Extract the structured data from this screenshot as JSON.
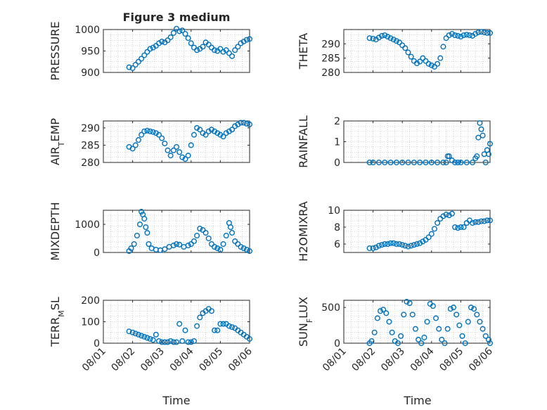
{
  "figure": {
    "title": "Figure 3 medium",
    "xlabel": "Time"
  },
  "colors": {
    "marker": "#0072bd",
    "axes": "#262626",
    "grid": "#b0b0b0",
    "background": "#ffffff"
  },
  "chart_data": [
    {
      "type": "scatter",
      "ylabel": "PRESSURE",
      "ylabel_parts": [
        "PRESSURE"
      ],
      "ylim": [
        900,
        1000
      ],
      "yticks": [
        900,
        950,
        1000
      ],
      "xlim": [
        0,
        5
      ],
      "xticklabels": [],
      "x": [
        0.88,
        1.0,
        1.1,
        1.2,
        1.3,
        1.4,
        1.5,
        1.6,
        1.7,
        1.8,
        1.9,
        2.0,
        2.1,
        2.2,
        2.3,
        2.4,
        2.5,
        2.6,
        2.7,
        2.8,
        2.9,
        3.0,
        3.1,
        3.2,
        3.3,
        3.4,
        3.5,
        3.6,
        3.7,
        3.8,
        3.9,
        4.0,
        4.1,
        4.2,
        4.3,
        4.4,
        4.5,
        4.6,
        4.7,
        4.8,
        4.9,
        5.0
      ],
      "y": [
        912,
        910,
        918,
        925,
        932,
        940,
        948,
        955,
        958,
        962,
        968,
        972,
        970,
        975,
        982,
        992,
        1002,
        996,
        998,
        990,
        980,
        968,
        958,
        952,
        955,
        960,
        970,
        965,
        958,
        952,
        950,
        955,
        948,
        952,
        945,
        938,
        952,
        960,
        968,
        972,
        976,
        978
      ]
    },
    {
      "type": "scatter",
      "ylabel": "THETA",
      "ylabel_parts": [
        "THETA"
      ],
      "ylim": [
        280,
        295
      ],
      "yticks": [
        280,
        285,
        290
      ],
      "xlim": [
        0,
        5
      ],
      "xticklabels": [],
      "x": [
        0.88,
        1.0,
        1.1,
        1.2,
        1.3,
        1.4,
        1.5,
        1.6,
        1.7,
        1.8,
        1.9,
        2.0,
        2.1,
        2.2,
        2.3,
        2.4,
        2.5,
        2.6,
        2.7,
        2.8,
        2.9,
        3.0,
        3.1,
        3.2,
        3.3,
        3.4,
        3.5,
        3.6,
        3.7,
        3.8,
        3.9,
        4.0,
        4.1,
        4.2,
        4.3,
        4.4,
        4.5,
        4.6,
        4.7,
        4.8,
        4.9,
        5.0
      ],
      "y": [
        292,
        291.8,
        291.5,
        292.2,
        292.8,
        293.0,
        292.5,
        292.0,
        291.5,
        291.0,
        290.5,
        289.5,
        288.5,
        287.0,
        285.5,
        284.0,
        283.2,
        283.8,
        285.0,
        284.0,
        283.0,
        282.5,
        282.0,
        283.0,
        285.0,
        289.0,
        292.0,
        293.0,
        293.5,
        293.0,
        292.8,
        292.5,
        293.0,
        293.2,
        293.0,
        292.8,
        293.5,
        294.0,
        294.2,
        294.0,
        293.8,
        293.8
      ]
    },
    {
      "type": "scatter",
      "ylabel": "AIR_TEMP",
      "ylabel_parts": [
        "AIR",
        "T",
        "EMP"
      ],
      "ylim": [
        280,
        292
      ],
      "yticks": [
        280,
        285,
        290
      ],
      "xlim": [
        0,
        5
      ],
      "xticklabels": [],
      "x": [
        0.88,
        1.0,
        1.1,
        1.2,
        1.3,
        1.4,
        1.5,
        1.6,
        1.7,
        1.8,
        1.9,
        2.0,
        2.1,
        2.2,
        2.3,
        2.4,
        2.5,
        2.6,
        2.7,
        2.8,
        2.9,
        3.0,
        3.1,
        3.2,
        3.3,
        3.4,
        3.5,
        3.6,
        3.7,
        3.8,
        3.9,
        4.0,
        4.1,
        4.2,
        4.3,
        4.4,
        4.5,
        4.6,
        4.7,
        4.8,
        4.9,
        5.0
      ],
      "y": [
        284.5,
        284.0,
        285.0,
        286.5,
        288.0,
        289.0,
        289.2,
        289.0,
        288.8,
        288.5,
        288.0,
        287.0,
        285.5,
        283.5,
        282.0,
        283.5,
        284.5,
        283.0,
        281.5,
        281.0,
        282.0,
        285.0,
        288.0,
        290.0,
        289.5,
        288.5,
        288.0,
        289.0,
        289.5,
        289.0,
        288.5,
        288.0,
        287.5,
        288.5,
        289.0,
        289.5,
        290.5,
        291.0,
        291.5,
        291.5,
        291.2,
        291.0
      ]
    },
    {
      "type": "scatter",
      "ylabel": "RAINFALL",
      "ylabel_parts": [
        "RAINFALL"
      ],
      "ylim": [
        0,
        2
      ],
      "yticks": [
        0,
        1,
        2
      ],
      "xlim": [
        0,
        5
      ],
      "xticklabels": [],
      "x": [
        0.88,
        1.0,
        1.2,
        1.4,
        1.6,
        1.8,
        2.0,
        2.2,
        2.4,
        2.6,
        2.8,
        3.0,
        3.2,
        3.4,
        3.5,
        3.55,
        3.6,
        3.7,
        3.8,
        3.9,
        4.0,
        4.2,
        4.4,
        4.5,
        4.55,
        4.6,
        4.65,
        4.7,
        4.75,
        4.8,
        4.85,
        4.9,
        4.95,
        5.0
      ],
      "y": [
        0,
        0,
        0,
        0,
        0,
        0,
        0,
        0,
        0,
        0,
        0,
        0,
        0,
        0,
        0,
        0.3,
        0.3,
        0.1,
        0,
        0,
        0,
        0,
        0,
        0.2,
        0.3,
        1.2,
        1.9,
        1.6,
        1.3,
        0.4,
        0.0,
        0.6,
        0.4,
        0.9
      ]
    },
    {
      "type": "scatter",
      "ylabel": "MIXDEPTH",
      "ylabel_parts": [
        "MIXDEPTH"
      ],
      "ylim": [
        0,
        1500
      ],
      "yticks": [
        0,
        1000
      ],
      "xlim": [
        0,
        5
      ],
      "xticklabels": [],
      "x": [
        0.88,
        0.95,
        1.05,
        1.15,
        1.25,
        1.3,
        1.35,
        1.4,
        1.45,
        1.5,
        1.55,
        1.65,
        1.8,
        1.95,
        2.1,
        2.25,
        2.4,
        2.5,
        2.6,
        2.75,
        2.9,
        3.0,
        3.1,
        3.2,
        3.3,
        3.4,
        3.5,
        3.6,
        3.7,
        3.8,
        3.9,
        4.0,
        4.1,
        4.2,
        4.3,
        4.35,
        4.4,
        4.5,
        4.6,
        4.7,
        4.8,
        4.9,
        5.0
      ],
      "y": [
        50,
        150,
        300,
        600,
        1000,
        1450,
        1350,
        1200,
        900,
        700,
        300,
        150,
        100,
        80,
        120,
        200,
        250,
        300,
        280,
        200,
        250,
        300,
        400,
        600,
        850,
        800,
        700,
        500,
        300,
        200,
        150,
        100,
        300,
        600,
        1050,
        900,
        700,
        400,
        300,
        200,
        150,
        100,
        50
      ]
    },
    {
      "type": "scatter",
      "ylabel": "H2OMIXRA",
      "ylabel_parts": [
        "H2OMIXRA"
      ],
      "ylim": [
        5,
        10
      ],
      "yticks": [
        6,
        8,
        10
      ],
      "xlim": [
        0,
        5
      ],
      "xticklabels": [],
      "x": [
        0.88,
        1.0,
        1.1,
        1.2,
        1.3,
        1.4,
        1.5,
        1.6,
        1.7,
        1.8,
        1.9,
        2.0,
        2.1,
        2.2,
        2.3,
        2.4,
        2.5,
        2.6,
        2.7,
        2.8,
        2.9,
        3.0,
        3.1,
        3.2,
        3.3,
        3.4,
        3.5,
        3.6,
        3.7,
        3.8,
        3.9,
        4.0,
        4.1,
        4.2,
        4.3,
        4.4,
        4.5,
        4.6,
        4.7,
        4.8,
        4.9,
        5.0
      ],
      "y": [
        5.5,
        5.5,
        5.6,
        5.8,
        5.9,
        6.0,
        6.0,
        6.1,
        6.1,
        6.0,
        6.0,
        5.9,
        5.8,
        5.7,
        5.8,
        5.9,
        6.0,
        6.1,
        6.3,
        6.5,
        6.8,
        7.2,
        7.8,
        8.5,
        9.0,
        9.3,
        9.5,
        9.4,
        9.6,
        8.0,
        7.9,
        8.0,
        8.0,
        8.5,
        8.8,
        8.5,
        8.6,
        8.6,
        8.7,
        8.7,
        8.8,
        8.8
      ]
    },
    {
      "type": "scatter",
      "ylabel": "TERR_MSL",
      "ylabel_parts": [
        "TERR",
        "M",
        "SL"
      ],
      "ylim": [
        0,
        200
      ],
      "yticks": [
        0,
        100,
        200
      ],
      "xlim": [
        0,
        5
      ],
      "xticklabels": [
        "08/01",
        "08/02",
        "08/03",
        "08/04",
        "08/05",
        "08/06"
      ],
      "x": [
        0.88,
        1.0,
        1.1,
        1.2,
        1.3,
        1.4,
        1.5,
        1.6,
        1.7,
        1.8,
        1.9,
        2.0,
        2.1,
        2.2,
        2.3,
        2.4,
        2.5,
        2.6,
        2.7,
        2.8,
        2.9,
        3.0,
        3.1,
        3.2,
        3.3,
        3.4,
        3.5,
        3.6,
        3.7,
        3.8,
        3.9,
        4.0,
        4.1,
        4.2,
        4.3,
        4.4,
        4.5,
        4.6,
        4.7,
        4.8,
        4.9,
        5.0
      ],
      "y": [
        55,
        50,
        45,
        40,
        35,
        30,
        25,
        20,
        15,
        40,
        10,
        5,
        5,
        5,
        10,
        5,
        5,
        90,
        10,
        60,
        5,
        5,
        10,
        80,
        120,
        140,
        150,
        160,
        150,
        60,
        60,
        90,
        90,
        90,
        80,
        75,
        70,
        60,
        50,
        40,
        30,
        20
      ]
    },
    {
      "type": "scatter",
      "ylabel": "SUN_FLUX",
      "ylabel_parts": [
        "SUN",
        "F",
        "LUX"
      ],
      "ylim": [
        0,
        600
      ],
      "yticks": [
        0,
        500
      ],
      "xlim": [
        0,
        5
      ],
      "xticklabels": [
        "08/01",
        "08/02",
        "08/03",
        "08/04",
        "08/05",
        "08/06"
      ],
      "x": [
        0.88,
        0.95,
        1.05,
        1.15,
        1.25,
        1.35,
        1.45,
        1.55,
        1.65,
        1.75,
        1.85,
        1.95,
        2.05,
        2.15,
        2.25,
        2.35,
        2.45,
        2.55,
        2.65,
        2.75,
        2.85,
        2.95,
        3.05,
        3.15,
        3.25,
        3.35,
        3.45,
        3.55,
        3.65,
        3.75,
        3.85,
        3.95,
        4.05,
        4.15,
        4.25,
        4.35,
        4.45,
        4.55,
        4.65,
        4.75,
        4.85,
        4.95,
        5.0
      ],
      "y": [
        0,
        30,
        150,
        350,
        450,
        470,
        420,
        300,
        150,
        30,
        0,
        100,
        400,
        580,
        560,
        400,
        200,
        50,
        0,
        80,
        300,
        550,
        520,
        350,
        200,
        50,
        0,
        200,
        480,
        500,
        400,
        250,
        100,
        0,
        300,
        500,
        480,
        400,
        300,
        200,
        100,
        50,
        0
      ]
    }
  ]
}
